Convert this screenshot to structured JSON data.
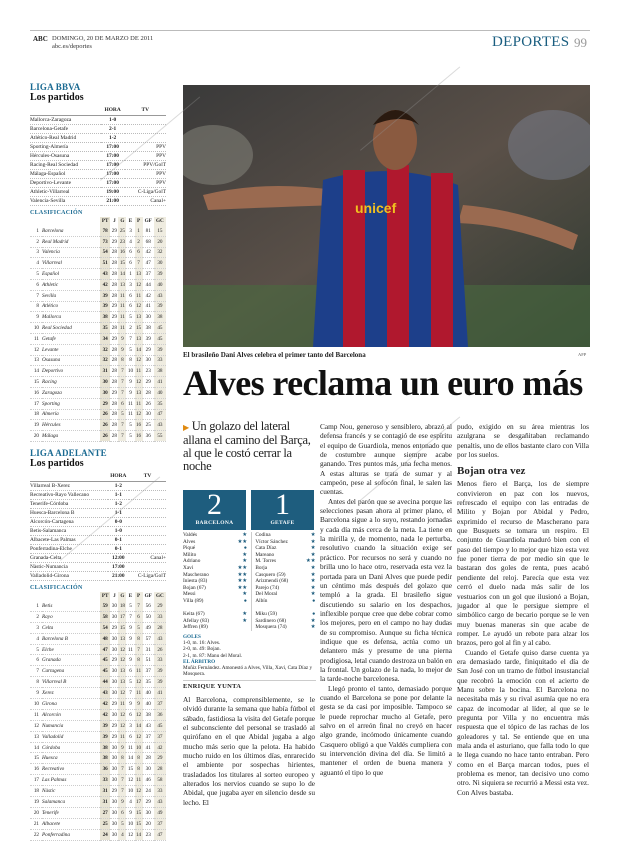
{
  "header": {
    "brand": "ABC",
    "date": "DOMINGO, 20 DE MARZO DE 2011",
    "site": "abc.es/deportes",
    "section": "DEPORTES",
    "page": "99"
  },
  "liga_bbva": {
    "title": "LIGA BBVA",
    "matches_title": "Los partidos",
    "match_cols": [
      "",
      "HORA",
      "TV"
    ],
    "matches": [
      [
        "Mallorca-Zaragoza",
        "1-0",
        ""
      ],
      [
        "Barcelona-Getafe",
        "2-1",
        ""
      ],
      [
        "Atlético-Real Madrid",
        "1-2",
        ""
      ],
      [
        "Sporting-Almería",
        "17:00",
        "PPV"
      ],
      [
        "Hércules-Osasuna",
        "17:00",
        "PPV"
      ],
      [
        "Racing-Real Sociedad",
        "17:00",
        "PPV/GolT"
      ],
      [
        "Málaga-Español",
        "17:00",
        "PPV"
      ],
      [
        "Deportivo-Levante",
        "17:00",
        "PPV"
      ],
      [
        "Athletic-Villarreal",
        "19:00",
        "C-Liga/GolT"
      ],
      [
        "Valencia-Sevilla",
        "21:00",
        "Canal+"
      ]
    ],
    "standings_title": "CLASIFICACIÓN",
    "standings_cols": [
      "PT",
      "J",
      "G",
      "E",
      "P",
      "GF",
      "GC"
    ],
    "standings": [
      [
        1,
        "Barcelona",
        78,
        29,
        25,
        3,
        1,
        81,
        15
      ],
      [
        2,
        "Real Madrid",
        73,
        29,
        23,
        4,
        2,
        68,
        20
      ],
      [
        3,
        "Valencia",
        54,
        28,
        16,
        6,
        6,
        42,
        32
      ],
      [
        4,
        "Villarreal",
        51,
        28,
        15,
        6,
        7,
        47,
        30
      ],
      [
        5,
        "Español",
        43,
        28,
        14,
        1,
        13,
        37,
        39
      ],
      [
        6,
        "Athletic",
        42,
        28,
        13,
        3,
        12,
        44,
        40
      ],
      [
        7,
        "Sevilla",
        39,
        28,
        11,
        6,
        11,
        42,
        43
      ],
      [
        8,
        "Atlético",
        39,
        29,
        11,
        6,
        12,
        41,
        39
      ],
      [
        9,
        "Mallorca",
        38,
        29,
        11,
        5,
        13,
        30,
        38
      ],
      [
        10,
        "Real Sociedad",
        35,
        28,
        11,
        2,
        15,
        38,
        45
      ],
      [
        11,
        "Getafe",
        34,
        29,
        9,
        7,
        13,
        39,
        45
      ],
      [
        12,
        "Levante",
        32,
        28,
        9,
        5,
        14,
        29,
        39
      ],
      [
        13,
        "Osasuna",
        32,
        28,
        8,
        8,
        12,
        30,
        33
      ],
      [
        14,
        "Deportivo",
        31,
        28,
        7,
        10,
        11,
        23,
        38
      ],
      [
        15,
        "Racing",
        30,
        28,
        7,
        9,
        12,
        29,
        41
      ],
      [
        16,
        "Zaragoza",
        30,
        29,
        7,
        9,
        13,
        28,
        40
      ],
      [
        17,
        "Sporting",
        29,
        28,
        6,
        11,
        11,
        26,
        35
      ],
      [
        18,
        "Almería",
        26,
        28,
        5,
        11,
        12,
        30,
        47
      ],
      [
        19,
        "Hércules",
        26,
        28,
        7,
        5,
        16,
        25,
        43
      ],
      [
        20,
        "Málaga",
        26,
        28,
        7,
        5,
        16,
        36,
        55
      ]
    ]
  },
  "liga_adelante": {
    "title": "LIGA ADELANTE",
    "matches_title": "Los partidos",
    "match_cols": [
      "",
      "HORA",
      "TV"
    ],
    "matches": [
      [
        "Villarreal B-Xerez",
        "1-2",
        ""
      ],
      [
        "Recreativo-Rayo Vallecano",
        "1-1",
        ""
      ],
      [
        "Tenerife-Córdoba",
        "1-2",
        ""
      ],
      [
        "Huesca-Barcelona B",
        "1-1",
        ""
      ],
      [
        "Alcorcón-Cartagena",
        "0-0",
        ""
      ],
      [
        "Betis-Salamanca",
        "1-0",
        ""
      ],
      [
        "Albacete-Las Palmas",
        "0-1",
        ""
      ],
      [
        "Ponferradina-Elche",
        "0-1",
        ""
      ],
      [
        "Granada-Celta",
        "12:00",
        "Canal+"
      ],
      [
        "Nàstic-Numancia",
        "17:00",
        ""
      ],
      [
        "Valladolid-Girona",
        "21:00",
        "C-Liga/GolT"
      ]
    ],
    "standings_title": "CLASIFICACIÓN",
    "standings_cols": [
      "PT",
      "J",
      "G",
      "E",
      "P",
      "GF",
      "GC"
    ],
    "standings": [
      [
        1,
        "Betis",
        59,
        30,
        18,
        5,
        7,
        56,
        29
      ],
      [
        2,
        "Rayo",
        58,
        30,
        17,
        7,
        6,
        50,
        33
      ],
      [
        3,
        "Celta",
        54,
        29,
        15,
        9,
        5,
        49,
        28
      ],
      [
        4,
        "Barcelona B",
        48,
        30,
        13,
        9,
        8,
        57,
        43
      ],
      [
        5,
        "Elche",
        47,
        30,
        12,
        11,
        7,
        31,
        26
      ],
      [
        6,
        "Granada",
        45,
        29,
        12,
        9,
        8,
        51,
        33
      ],
      [
        7,
        "Cartagena",
        45,
        30,
        13,
        6,
        11,
        37,
        39
      ],
      [
        8,
        "Villarreal B",
        44,
        30,
        13,
        5,
        12,
        35,
        39
      ],
      [
        9,
        "Xerez",
        43,
        30,
        12,
        7,
        11,
        40,
        41
      ],
      [
        10,
        "Girona",
        42,
        29,
        11,
        9,
        9,
        40,
        37
      ],
      [
        11,
        "Alcorcón",
        42,
        30,
        12,
        6,
        12,
        38,
        36
      ],
      [
        12,
        "Numancia",
        39,
        29,
        12,
        3,
        14,
        43,
        45
      ],
      [
        13,
        "Valladolid",
        39,
        29,
        11,
        6,
        12,
        37,
        37
      ],
      [
        14,
        "Córdoba",
        38,
        30,
        9,
        11,
        10,
        41,
        42
      ],
      [
        15,
        "Huesca",
        38,
        30,
        8,
        14,
        8,
        28,
        29
      ],
      [
        16,
        "Recreativo",
        36,
        30,
        7,
        15,
        8,
        30,
        28
      ],
      [
        17,
        "Las Palmas",
        33,
        30,
        7,
        12,
        11,
        46,
        58
      ],
      [
        18,
        "Nàstic",
        31,
        29,
        7,
        10,
        12,
        24,
        33
      ],
      [
        19,
        "Salamanca",
        31,
        30,
        9,
        4,
        17,
        29,
        43
      ],
      [
        20,
        "Tenerife",
        27,
        30,
        6,
        9,
        15,
        30,
        49
      ],
      [
        21,
        "Albacete",
        25,
        30,
        5,
        10,
        15,
        20,
        37
      ],
      [
        22,
        "Ponferradina",
        24,
        30,
        4,
        12,
        14,
        23,
        47
      ]
    ]
  },
  "photo": {
    "caption": "El brasileño Dani Alves celebra el primer tanto del Barcelona",
    "credit": "AFP"
  },
  "article": {
    "headline": "Alves reclama un euro más",
    "subhead": "Un golazo del lateral allana el camino del Barça, al que le costó cerrar la noche",
    "author": "ENRIQUE YUNTA",
    "col1": [
      "Al Barcelona, comprensiblemente, se le olvidó durante la semana que había fútbol el sábado, fastidiosa la visita del Getafe porque el subconsciente del personal se trasladó al quirófano en el que Abidal jugaba a algo mucho más serio que la pelota. Ha habido mucho ruido en los últimos días, enrarecido el ambiente por sospechas hirientes, trasladados los titulares al sorteo europeo y alterados los nervios cuando se supo lo de Abidal, que jugaba ayer en silencio desde su lecho. El"
    ],
    "col2": [
      "Camp Nou, generoso y sensiblero, abrazó al defensa francés y se contagió de ese espíritu el equipo de Guardiola, menos entonado que de costumbre aunque siempre acabe ganando. Tres puntos más, una fecha menos. A estas alturas se trata de sumar y al campeón, pese al sofocón final, le salen las cuentas.",
      "Antes del parón que se avecina porque las selecciones pasan ahora al primer plano, el Barcelona sigue a lo suyo, restando jornadas y cada día más cerca de la meta. La tiene en la mirilla y, de momento, nada le perturba, resolutivo cuando la situación exige ser práctico. Por recursos no será y cuando no brilla uno lo hace otro, reservada esta vez la portada para un Dani Alves que puede pedir un céntimo más después del golazo que templó a la grada. El brasileño sigue discutiendo su salario en los despachos, inflexible porque cree que debe cobrar como los mejores, pero en el campo no hay dudas de su compromiso. Aunque su ficha técnica indique que es defensa, actúa como un delantero más y presume de una pierna prodigiosa, letal cuando destroza un balón en la frontal. Un golazo de la nada, lo mejor de la tarde-noche barcelonesa.",
      "Llegó pronto el tanto, demasiado porque cuando el Barcelona se pone por delante la gesta se da casi por imposible. Tampoco se le puede reprochar mucho al Getafe, pero salvo en el arreón final no creyó en hacer algo grande, incómodo únicamente cuando Casquero obligó a que Valdés cumpliera con su intervención divina del día. Se limitó a mantener el orden de buena manera y aguantó el tipo lo que"
    ],
    "col3a": [
      "pudo, exigido en su área mientras los azulgrana se desgañitaban reclamando penaltis, uno de ellos bastante claro con Villa por los suelos."
    ],
    "col3_heading": "Bojan otra vez",
    "col3b": [
      "Menos fiero el Barça, los de siempre convivieron en paz con los nuevos, refrescado el equipo con las entradas de Milito y Bojan por Abidal y Pedro, exprimido el recurso de Mascherano para que Busquets se tomara un respiro. El conjunto de Guardiola maduró bien con el paso del tiempo y lo mejor que hizo esta vez fue poner tierra de por medio sin que le bastaran dos goles de renta, pues acabó pendiente del reloj. Parecía que esta vez cerró el duelo nada más salir de los vestuarios con un gol que ilusionó a Bojan, jugador al que le persigue siempre el simbólico cargo de becario porque se le ven muy buenas maneras sin que acabe de romper. Le ayudó un rebote para alzar los brazos, pero gol al fin y al cabo.",
      "Cuando el Getafe quiso darse cuenta ya era demasiado tarde, finiquitado el día de San José con un tramo de fútbol insustancial que recobró la emoción con el acierto de Manu sobre la bocina. El Barcelona no necesitaba más y su rival asumía que no era capaz de incomodar al líder, al que se le pregunta por Villa y no encuentra más respuesta que el tópico de las rachas de los goleadores y tal. Se entiende que en una mala anda el asturiano, que falla todo lo que le llega cuando no hace tanto entraban. Pero como en el Barça marcan todos, pues el problema es menor, tan decisivo uno como otro. Ni siquiera se recurrió a Messi esta vez. Con Alves bastaba."
    ]
  },
  "match": {
    "home": {
      "team": "BARCELONA",
      "score": "2",
      "players": [
        [
          "Valdés",
          "★"
        ],
        [
          "Alves",
          "★★"
        ],
        [
          "Piqué",
          "●"
        ],
        [
          "Milito",
          "★"
        ],
        [
          "Adriano",
          "★"
        ],
        [
          "Xavi",
          "★★"
        ],
        [
          "Mascherano",
          "★★"
        ],
        [
          "Iniesta (83)",
          "★★"
        ],
        [
          "Bojan (67)",
          "★★"
        ],
        [
          "Messi",
          "★"
        ],
        [
          "Villa (89)",
          "●"
        ]
      ],
      "subs": [
        [
          "Keita (67)",
          "★"
        ],
        [
          "Afellay (83)",
          "★"
        ],
        [
          "Jeffren (89)",
          ""
        ]
      ]
    },
    "away": {
      "team": "GETAFE",
      "score": "1",
      "players": [
        [
          "Codina",
          "★"
        ],
        [
          "Víctor Sánchez",
          "★"
        ],
        [
          "Cata Díaz",
          "★"
        ],
        [
          "Mareano",
          "★"
        ],
        [
          "M. Torres",
          "★★"
        ],
        [
          "Borja",
          "★"
        ],
        [
          "Casquero (59)",
          "★"
        ],
        [
          "Arizmendi (68)",
          "★"
        ],
        [
          "Parejo (74)",
          "★"
        ],
        [
          "Del Moral",
          "★"
        ],
        [
          "Albín",
          "●"
        ]
      ],
      "subs": [
        [
          "Miku (59)",
          "●"
        ],
        [
          "Sardinero (68)",
          "★"
        ],
        [
          "Mosquera (74)",
          "★"
        ]
      ]
    },
    "goals_title": "GOLES",
    "goals": [
      "1-0, m. 16: Alves.",
      "2-0, m. 49: Bojan.",
      "2-1, m. 87: Manu del Moral."
    ],
    "referee_title": "EL ÁRBITRO",
    "referee": "Muñiz Fernández. Amonestó a Alves, Villa, Xavi, Cata Díaz y Mosquera."
  },
  "colors": {
    "accent": "#1a6a92",
    "score_box": "#1e5d7e",
    "subhead_bullet": "#e08a10",
    "barca_red": "#b0182e",
    "barca_blue": "#1d3f8a"
  }
}
